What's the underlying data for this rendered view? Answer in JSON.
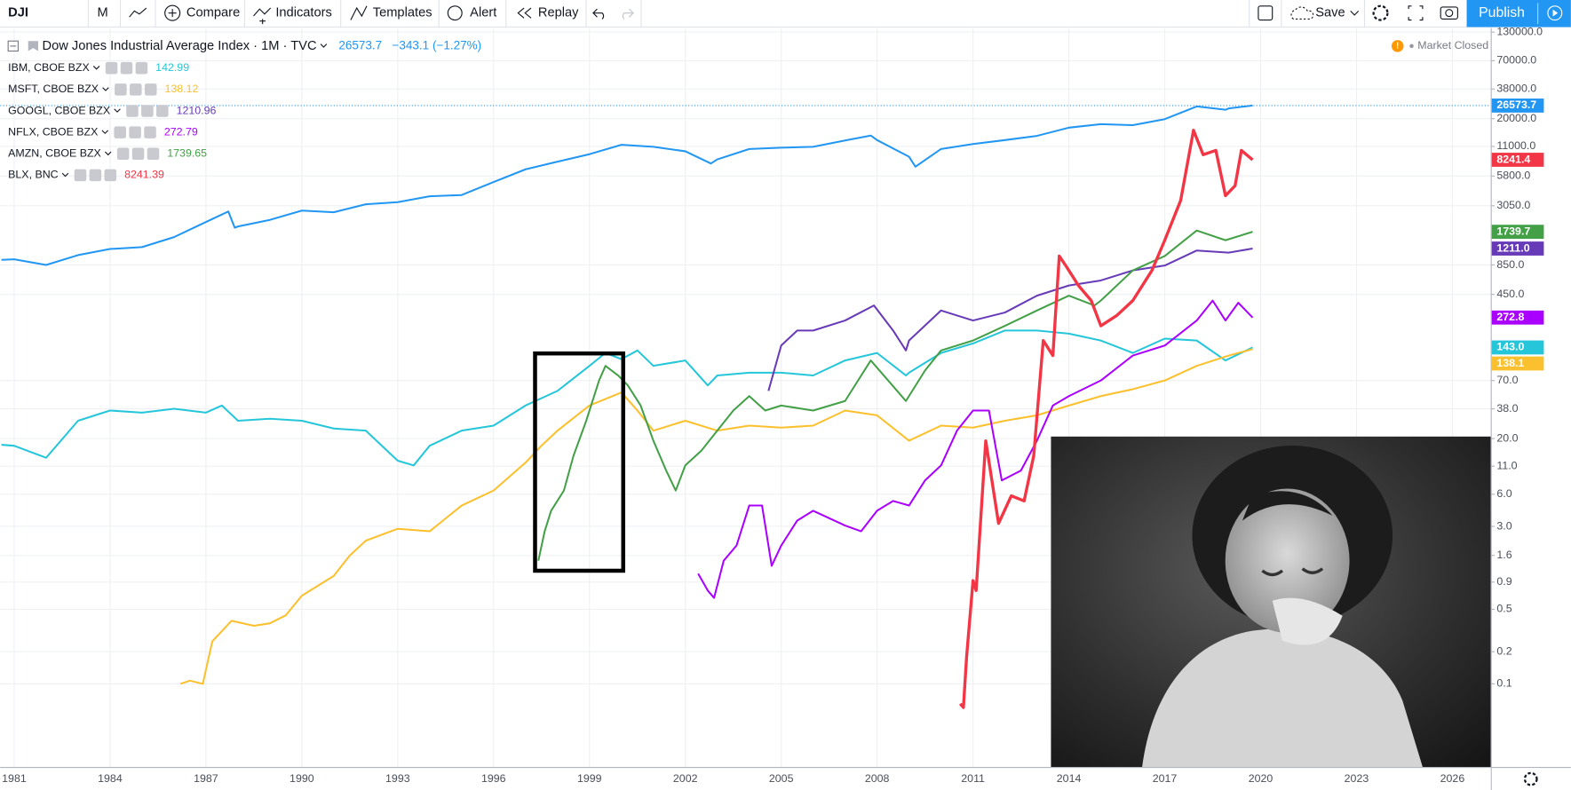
{
  "toolbar": {
    "symbol": "DJI",
    "interval": "M",
    "buttons": [
      "Compare",
      "Indicators",
      "Templates",
      "Alert",
      "Replay"
    ],
    "save": "Save",
    "publish": "Publish"
  },
  "chart_data": {
    "type": "line",
    "change": "−343.1 (−1.27%)",
    "status": "Market Closed",
    "log_scale": true,
    "grid": true,
    "xlim": [
      1980.56,
      2027.2
    ],
    "xticks": [
      1981,
      1984,
      1987,
      1990,
      1993,
      1996,
      1999,
      2002,
      2005,
      2008,
      2011,
      2014,
      2017,
      2020,
      2023,
      2026
    ],
    "ylim": [
      0.0166,
      135800
    ],
    "yticks": [
      {
        "value": 130000,
        "label": "130000.0"
      },
      {
        "value": 70000,
        "label": "70000.0"
      },
      {
        "value": 38000,
        "label": "38000.0"
      },
      {
        "value": 20000,
        "label": "20000.0"
      },
      {
        "value": 11000,
        "label": "11000.0"
      },
      {
        "value": 5800,
        "label": "5800.0"
      },
      {
        "value": 3050,
        "label": "3050.0"
      },
      {
        "value": 850,
        "label": "850.0"
      },
      {
        "value": 450,
        "label": "450.0"
      },
      {
        "value": 70,
        "label": "70.0"
      },
      {
        "value": 38,
        "label": "38.0"
      },
      {
        "value": 20,
        "label": "20.0"
      },
      {
        "value": 11,
        "label": "11.0"
      },
      {
        "value": 6,
        "label": "6.0"
      },
      {
        "value": 3,
        "label": "3.0"
      },
      1.6,
      0.9,
      0.5,
      0.2,
      0.1
    ],
    "series": [
      {
        "name": "Dow Jones Industrial Average Index · 1M · TVC",
        "color": "#2196f3",
        "last": {
          "value": 26573.7,
          "label": "26573.7"
        },
        "x": [
          1980.6,
          1981,
          1982,
          1983,
          1984,
          1985,
          1986,
          1987,
          1987.7,
          1987.9,
          1988,
          1989,
          1990,
          1991,
          1992,
          1993,
          1994,
          1995,
          1996,
          1997,
          1998,
          1999,
          2000,
          2001,
          2002,
          2002.8,
          2003,
          2004,
          2005,
          2006,
          2007,
          2007.8,
          2008,
          2009,
          2009.2,
          2010,
          2011,
          2012,
          2013,
          2014,
          2015,
          2016,
          2017,
          2018,
          2018.9,
          2019,
          2019.75
        ],
        "values": [
          950,
          960,
          850,
          1050,
          1200,
          1250,
          1550,
          2150,
          2700,
          1900,
          1950,
          2250,
          2750,
          2650,
          3150,
          3300,
          3750,
          3850,
          5100,
          6700,
          7900,
          9300,
          11400,
          10900,
          9900,
          7600,
          8300,
          10400,
          10700,
          10900,
          12500,
          13900,
          12600,
          8800,
          7100,
          10400,
          11600,
          12600,
          13800,
          16500,
          17800,
          17400,
          19800,
          26100,
          24300,
          25000,
          26573.7
        ]
      },
      {
        "name": "IBM, CBOE BZX",
        "color": "#26c6da",
        "last": {
          "value": 142.99,
          "label": "143.0"
        },
        "x": [
          1980.6,
          1981,
          1982,
          1983,
          1984,
          1985,
          1986,
          1987,
          1987.5,
          1988,
          1989,
          1990,
          1991,
          1992,
          1993,
          1993.5,
          1994,
          1995,
          1996,
          1997,
          1998,
          1999,
          1999.5,
          2000,
          2000.5,
          2001,
          2002,
          2002.7,
          2003,
          2004,
          2005,
          2006,
          2007,
          2008,
          2008.9,
          2009,
          2010,
          2011,
          2012,
          2013,
          2014,
          2015,
          2016,
          2017,
          2018,
          2018.9,
          2019.75
        ],
        "values": [
          17.5,
          17.1,
          13.2,
          29.4,
          36.6,
          35,
          38.1,
          35,
          40.8,
          29.4,
          30.7,
          29.4,
          24.8,
          23.7,
          12.4,
          11.2,
          17.1,
          23.7,
          26.4,
          40.8,
          56,
          96,
          127,
          111,
          134,
          96,
          108,
          63,
          78,
          83,
          83,
          78,
          108,
          127,
          78,
          83,
          127,
          156,
          206,
          206,
          193,
          166,
          127,
          173,
          166,
          108,
          142.99
        ]
      },
      {
        "name": "MSFT, CBOE BZX",
        "color": "#fbc02d",
        "last": {
          "value": 138.12,
          "label": "138.1"
        },
        "x": [
          1986.2,
          1986.5,
          1986.9,
          1987.2,
          1987.8,
          1988.5,
          1989,
          1989.5,
          1990,
          1991,
          1991.5,
          1992,
          1993,
          1994,
          1995,
          1996,
          1997,
          1997.5,
          1998,
          1999,
          2000,
          2000.5,
          2001,
          2002,
          2003,
          2004,
          2005,
          2006,
          2007,
          2008,
          2009,
          2010,
          2011,
          2012,
          2013,
          2014,
          2015,
          2016,
          2017,
          2018,
          2019,
          2019.75
        ],
        "values": [
          0.1,
          0.107,
          0.1,
          0.25,
          0.39,
          0.35,
          0.37,
          0.44,
          0.67,
          1.03,
          1.6,
          2.2,
          2.85,
          2.7,
          4.7,
          6.5,
          11.9,
          17.2,
          23.7,
          40.8,
          54,
          36.6,
          23.7,
          29.4,
          23.7,
          26.4,
          25.3,
          26.4,
          36.6,
          33,
          19.1,
          26.4,
          25.3,
          29.4,
          33,
          40.8,
          50,
          58,
          70,
          96,
          120,
          138.12
        ]
      },
      {
        "name": "GOOGL, CBOE BZX",
        "color": "#673ab7",
        "last": {
          "value": 1210.96,
          "label": "1211.0"
        },
        "x": [
          2004.6,
          2005,
          2005.5,
          2006,
          2007,
          2007.9,
          2008.5,
          2008.9,
          2009,
          2010,
          2011,
          2012,
          2013,
          2014,
          2015,
          2016,
          2017,
          2018,
          2019,
          2019.75
        ],
        "values": [
          56,
          149,
          206,
          206,
          256,
          354,
          206,
          134,
          166,
          318,
          256,
          304,
          438,
          546,
          608,
          755,
          840,
          1160,
          1110,
          1210.96
        ]
      },
      {
        "name": "NFLX, CBOE BZX",
        "color": "#aa00ff",
        "last": {
          "value": 272.79,
          "label": "272.8"
        },
        "x": [
          2002.4,
          2002.7,
          2002.9,
          2003.2,
          2003.6,
          2004,
          2004.4,
          2004.7,
          2005,
          2005.5,
          2006,
          2007,
          2007.5,
          2008,
          2008.5,
          2009,
          2009.5,
          2010,
          2010.5,
          2011,
          2011.5,
          2011.9,
          2012.5,
          2013,
          2013.5,
          2014,
          2015,
          2016,
          2017,
          2018,
          2018.5,
          2018.9,
          2019.3,
          2019.75
        ],
        "values": [
          1.08,
          0.75,
          0.64,
          1.43,
          1.98,
          4.7,
          4.7,
          1.28,
          1.98,
          3.4,
          4.2,
          3.05,
          2.7,
          4.2,
          5.2,
          4.7,
          8.1,
          11.2,
          23.7,
          36.6,
          36.6,
          8.1,
          10,
          19.1,
          40.8,
          50,
          70,
          120,
          149,
          256,
          394,
          256,
          375,
          272.79
        ]
      },
      {
        "name": "AMZN, CBOE BZX",
        "color": "#43a047",
        "last": {
          "value": 1739.65,
          "label": "1739.7"
        },
        "x": [
          1997.4,
          1997.6,
          1997.8,
          1998.2,
          1998.5,
          1998.9,
          1999.3,
          1999.5,
          1999.9,
          2000.2,
          2000.6,
          2001,
          2001.4,
          2001.7,
          2002,
          2002.5,
          2003,
          2003.5,
          2004,
          2004.5,
          2005,
          2006,
          2007,
          2007.8,
          2008.9,
          2009.5,
          2010,
          2011,
          2012,
          2013,
          2014,
          2014.8,
          2015,
          2016,
          2017,
          2018,
          2018.9,
          2019.75
        ],
        "values": [
          1.43,
          2.7,
          4.2,
          6.5,
          13.8,
          29.4,
          70,
          96,
          78,
          63,
          40.8,
          19.1,
          10,
          6.5,
          11.2,
          15.4,
          23.7,
          36.6,
          50,
          36.6,
          40.8,
          36.6,
          45,
          108,
          45,
          87,
          134,
          166,
          228,
          318,
          438,
          354,
          394,
          755,
          1030,
          1790,
          1450,
          1739.65
        ]
      },
      {
        "name": "BLX, BNC",
        "color": "#f23645",
        "last": {
          "value": 8241.39,
          "label": "8241.4"
        },
        "x": [
          2010.6,
          2010.7,
          2010.8,
          2011,
          2011.1,
          2011.4,
          2011.8,
          2012.2,
          2012.6,
          2012.9,
          2013.2,
          2013.5,
          2013.7,
          2013.9,
          2014.3,
          2014.7,
          2015,
          2015.5,
          2016,
          2016.6,
          2017,
          2017.5,
          2017.9,
          2018.2,
          2018.6,
          2018.9,
          2019.2,
          2019.4,
          2019.75
        ],
        "values": [
          0.065,
          0.06,
          0.18,
          0.93,
          0.75,
          19,
          3.2,
          5.8,
          5.2,
          13.8,
          166,
          120,
          1030,
          840,
          546,
          394,
          228,
          285,
          394,
          755,
          1450,
          3430,
          15600,
          9200,
          10100,
          3800,
          4700,
          10100,
          8241.39
        ]
      }
    ]
  }
}
